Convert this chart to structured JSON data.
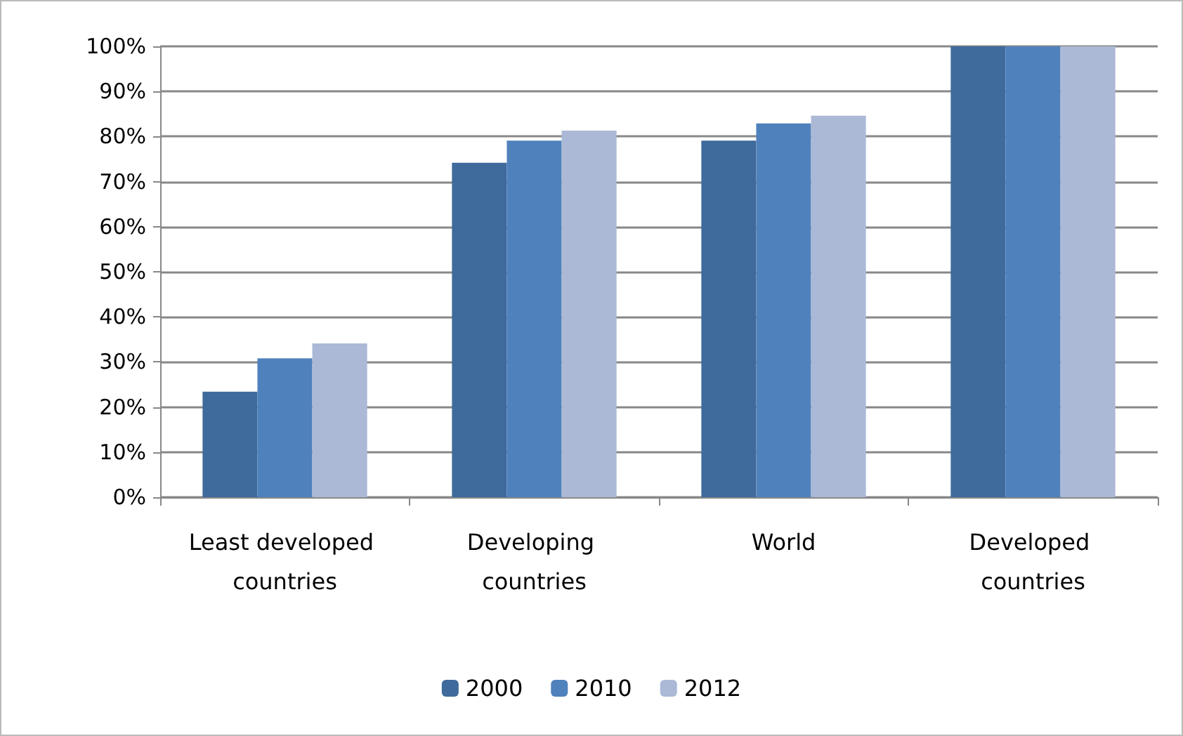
{
  "chart_data": {
    "type": "bar",
    "categories": [
      "Least developed countries",
      "Developing countries",
      "World",
      "Developed countries"
    ],
    "series": [
      {
        "name": "2000",
        "color": "#3f6a9c",
        "values": [
          23.4,
          74.2,
          79.1,
          100
        ]
      },
      {
        "name": "2010",
        "color": "#4f81bd",
        "values": [
          30.8,
          79.1,
          82.9,
          100
        ]
      },
      {
        "name": "2012",
        "color": "#abb9d6",
        "values": [
          34.1,
          81.3,
          84.6,
          100
        ]
      }
    ],
    "ylim": [
      0,
      100
    ],
    "yticks": [
      {
        "value": 0,
        "label": "0%"
      },
      {
        "value": 10,
        "label": "10%"
      },
      {
        "value": 20,
        "label": "20%"
      },
      {
        "value": 30,
        "label": "30%"
      },
      {
        "value": 40,
        "label": "40%"
      },
      {
        "value": 50,
        "label": "50%"
      },
      {
        "value": 60,
        "label": "60%"
      },
      {
        "value": 70,
        "label": "70%"
      },
      {
        "value": 80,
        "label": "80%"
      },
      {
        "value": 90,
        "label": "90%"
      },
      {
        "value": 100,
        "label": "100%"
      }
    ],
    "grid": true,
    "legend": "bottom"
  }
}
